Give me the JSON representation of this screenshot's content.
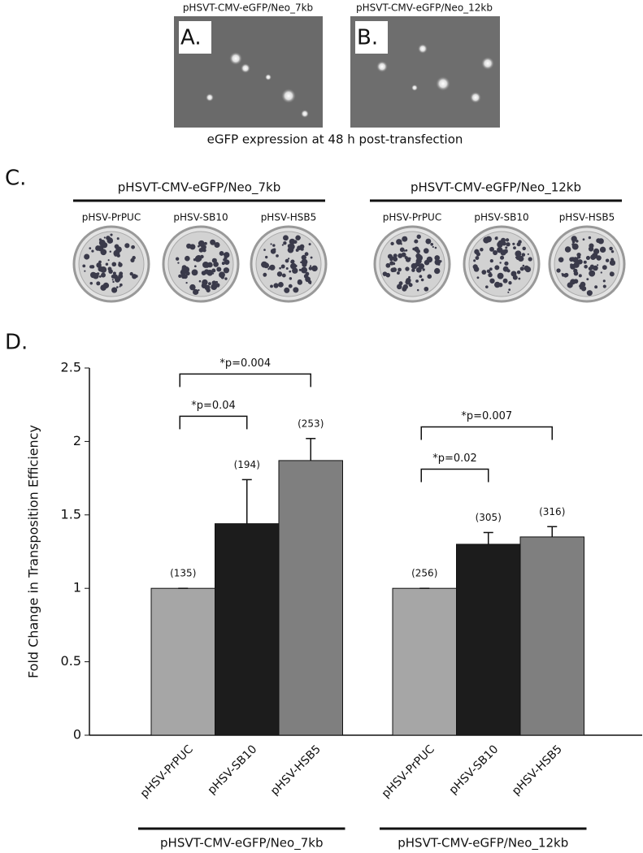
{
  "figure": {
    "images": [
      {
        "title": "pHSVT-CMV-eGFP/Neo_7kb",
        "letter": "A."
      },
      {
        "title": "pHSVT-CMV-eGFP/Neo_12kb",
        "letter": "B."
      }
    ],
    "images_caption": "eGFP expression at 48 h post-transfection",
    "panel_c": {
      "letter": "C.",
      "groups": [
        {
          "title": "pHSVT-CMV-eGFP/Neo_7kb",
          "dishes": [
            "pHSV-PrPUC",
            "pHSV-SB10",
            "pHSV-HSB5"
          ]
        },
        {
          "title": "pHSVT-CMV-eGFP/Neo_12kb",
          "dishes": [
            "pHSV-PrPUC",
            "pHSV-SB10",
            "pHSV-HSB5"
          ]
        }
      ]
    },
    "panel_d_letter": "D."
  },
  "chart_data": {
    "type": "bar",
    "ylabel": "Fold Change in Transposition Efficiency",
    "ylim": [
      0,
      2.5
    ],
    "yticks": [
      0,
      0.5,
      1,
      1.5,
      2,
      2.5
    ],
    "colors": [
      "#a6a6a6",
      "#1c1c1c",
      "#7f7f7f"
    ],
    "groups": [
      {
        "name": "pHSVT-CMV-eGFP/Neo_7kb",
        "categories": [
          "pHSV-PrPUC",
          "pHSV-SB10",
          "pHSV-HSB5"
        ],
        "values": [
          1.0,
          1.44,
          1.87
        ],
        "errors": [
          0,
          0.3,
          0.15
        ],
        "count_labels": [
          "(135)",
          "(194)",
          "(253)"
        ],
        "brackets": [
          {
            "label": "*p=0.04",
            "between": [
              "pHSV-PrPUC",
              "pHSV-SB10"
            ]
          },
          {
            "label": "*p=0.004",
            "between": [
              "pHSV-PrPUC",
              "pHSV-HSB5"
            ]
          }
        ]
      },
      {
        "name": "pHSVT-CMV-eGFP/Neo_12kb",
        "categories": [
          "pHSV-PrPUC",
          "pHSV-SB10",
          "pHSV-HSB5"
        ],
        "values": [
          1.0,
          1.3,
          1.35
        ],
        "errors": [
          0,
          0.08,
          0.07
        ],
        "count_labels": [
          "(256)",
          "(305)",
          "(316)"
        ],
        "brackets": [
          {
            "label": "*p=0.02",
            "between": [
              "pHSV-PrPUC",
              "pHSV-SB10"
            ]
          },
          {
            "label": "*p=0.007",
            "between": [
              "pHSV-PrPUC",
              "pHSV-HSB5"
            ]
          }
        ]
      }
    ]
  }
}
